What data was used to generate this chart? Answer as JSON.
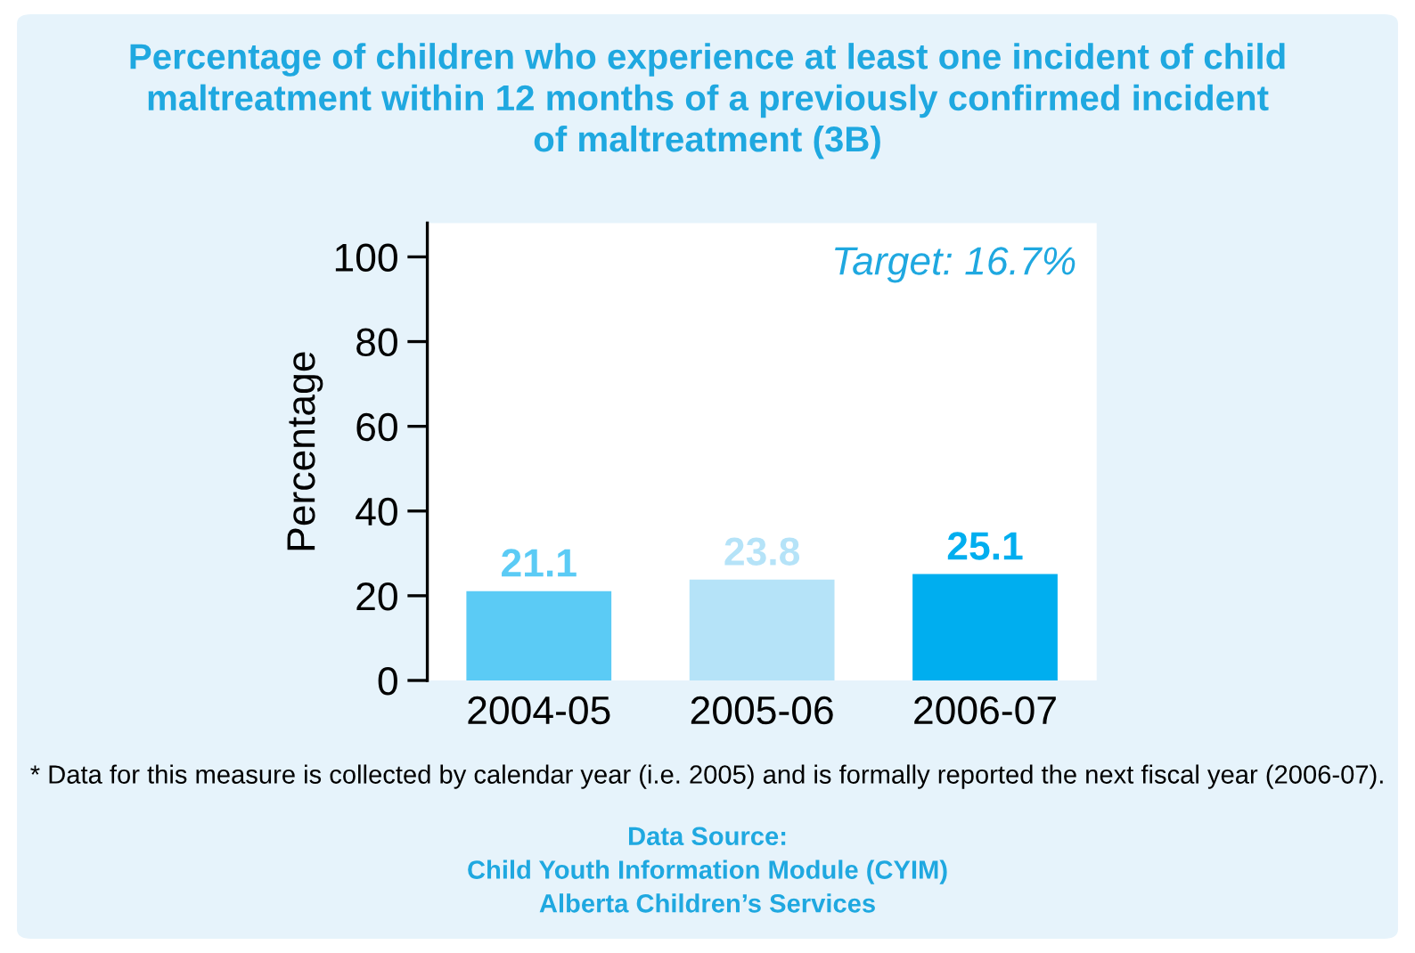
{
  "chart_data": {
    "type": "bar",
    "title": "Percentage of children who experience at least one incident of child\nmaltreatment within 12 months of a previously confirmed incident\nof maltreatment (3B)",
    "ylabel": "Percentage",
    "categories": [
      "2004-05",
      "2005-06",
      "2006-07"
    ],
    "values": [
      21.1,
      23.8,
      25.1
    ],
    "colors": [
      "#5bcbf5",
      "#b5e3f8",
      "#00aeef"
    ],
    "data_labels": true,
    "ylim": [
      0,
      108
    ],
    "yticks": [
      0,
      20,
      40,
      60,
      80,
      100
    ],
    "grid": false,
    "annotations": [
      "Target: 16.7%",
      "* Data for this measure is collected by calendar year (i.e. 2005) and is formally reported the next fiscal year (2006-07).",
      "Data Source:\nChild Youth Information Module (CYIM)\nAlberta Children’s Services"
    ]
  }
}
